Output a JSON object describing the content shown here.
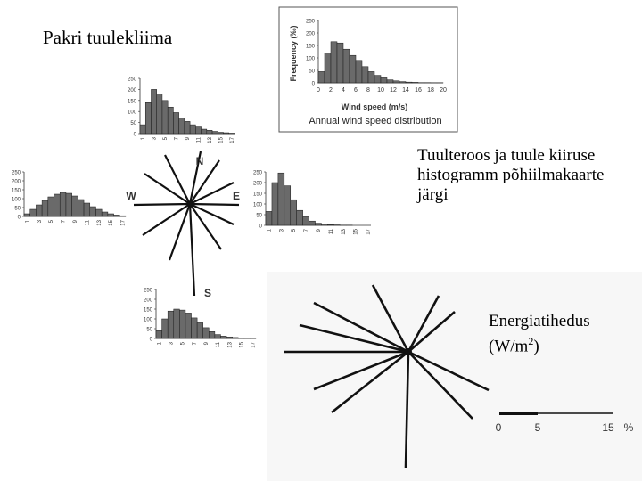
{
  "title": "Pakri tuulekliima",
  "caption_rose": "Tuulteroos ja tuule kiiruse histogramm põhiilmakaarte järgi",
  "caption_energy_line1": "Energiatihedus",
  "caption_energy_line2": "(W/m",
  "caption_energy_sup": "2",
  "caption_energy_line3": ")",
  "directions": {
    "n": "N",
    "w": "W",
    "e": "E",
    "s": "S"
  },
  "colors": {
    "bar_fill": "#6a6a6a",
    "bar_stroke": "#1a1a1a",
    "axis": "#333333",
    "rose_line": "#111111"
  },
  "chart_data": [
    {
      "id": "annual",
      "type": "bar",
      "title": "Annual wind speed distribution",
      "xlabel": "Wind speed (m/s)",
      "ylabel": "Frequency (‰)",
      "x_ticks": [
        "0",
        "2",
        "4",
        "6",
        "8",
        "10",
        "12",
        "14",
        "16",
        "18",
        "20"
      ],
      "y_ticks": [
        "0",
        "50",
        "100",
        "150",
        "200",
        "250"
      ],
      "ylim": [
        0,
        250
      ],
      "xlim": [
        0,
        20
      ],
      "values": [
        45,
        120,
        165,
        160,
        135,
        110,
        90,
        65,
        45,
        30,
        20,
        12,
        8,
        5,
        3,
        2,
        1,
        1,
        0.5,
        0.5
      ]
    },
    {
      "id": "north",
      "type": "bar",
      "x_ticks": [
        "1",
        "3",
        "5",
        "7",
        "9",
        "11",
        "13",
        "15",
        "17"
      ],
      "y_ticks": [
        "0",
        "50",
        "100",
        "150",
        "200",
        "250"
      ],
      "ylim": [
        0,
        250
      ],
      "values": [
        40,
        140,
        200,
        180,
        150,
        120,
        95,
        70,
        55,
        40,
        30,
        20,
        15,
        10,
        6,
        4,
        2
      ]
    },
    {
      "id": "west",
      "type": "bar",
      "x_ticks": [
        "1",
        "3",
        "5",
        "7",
        "9",
        "11",
        "13",
        "15",
        "17"
      ],
      "y_ticks": [
        "0",
        "50",
        "100",
        "150",
        "200",
        "250"
      ],
      "ylim": [
        0,
        250
      ],
      "values": [
        15,
        40,
        65,
        90,
        110,
        125,
        135,
        130,
        115,
        95,
        75,
        55,
        40,
        25,
        15,
        8,
        4
      ]
    },
    {
      "id": "east",
      "type": "bar",
      "x_ticks": [
        "1",
        "3",
        "5",
        "7",
        "9",
        "11",
        "13",
        "15",
        "17"
      ],
      "y_ticks": [
        "0",
        "50",
        "100",
        "150",
        "200",
        "250"
      ],
      "ylim": [
        0,
        250
      ],
      "values": [
        65,
        200,
        245,
        185,
        120,
        70,
        40,
        20,
        10,
        5,
        3,
        2,
        1,
        1,
        0,
        0,
        0
      ]
    },
    {
      "id": "south",
      "type": "bar",
      "x_ticks": [
        "1",
        "3",
        "5",
        "7",
        "9",
        "11",
        "13",
        "15",
        "17"
      ],
      "y_ticks": [
        "0",
        "50",
        "100",
        "150",
        "200",
        "250"
      ],
      "ylim": [
        0,
        250
      ],
      "values": [
        40,
        100,
        140,
        150,
        145,
        130,
        105,
        80,
        55,
        35,
        20,
        12,
        8,
        5,
        3,
        2,
        1
      ]
    },
    {
      "id": "energy_scale",
      "type": "table",
      "scale_labels": [
        "0",
        "5",
        "15",
        "%"
      ]
    }
  ]
}
